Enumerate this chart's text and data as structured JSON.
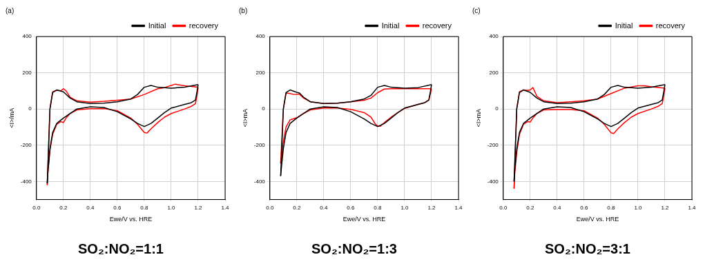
{
  "chart_data": [
    {
      "type": "line",
      "title": "(a)",
      "xlabel": "Ewe/V vs. HRE",
      "ylabel": "<I>/mA",
      "annotations": [
        "SO₂:NO₂=1:1"
      ],
      "xlim": [
        0,
        1.4
      ],
      "ylim": [
        -500,
        400
      ],
      "xticks": [
        {
          "value": 0,
          "label": "0.0"
        },
        {
          "value": 0.2,
          "label": "0.2"
        },
        {
          "value": 0.4,
          "label": "0.4"
        },
        {
          "value": 0.6,
          "label": "0.6"
        },
        {
          "value": 0.8,
          "label": "0.8"
        },
        {
          "value": 1,
          "label": "1.0"
        },
        {
          "value": 1.2,
          "label": "1.2"
        },
        {
          "value": 1.4,
          "label": "1.4"
        }
      ],
      "yticks": [
        -400,
        -200,
        0,
        200,
        400
      ],
      "grid": true,
      "legend": "top right",
      "marker": "none",
      "line_style": "solid",
      "series": [
        {
          "name": "Initial",
          "color": "#000000",
          "x": [
            0.08,
            0.1,
            0.12,
            0.15,
            0.2,
            0.25,
            0.3,
            0.4,
            0.5,
            0.6,
            0.7,
            0.75,
            0.8,
            0.85,
            0.9,
            1.0,
            1.1,
            1.2
          ],
          "values": [
            -410,
            0,
            90,
            105,
            95,
            60,
            40,
            30,
            32,
            40,
            55,
            80,
            120,
            130,
            120,
            115,
            120,
            135
          ]
        },
        {
          "color": "#000000",
          "x": [
            1.2,
            1.19,
            1.18,
            1.15,
            1.1,
            1.0,
            0.95,
            0.9,
            0.85,
            0.8,
            0.75,
            0.7,
            0.6,
            0.5,
            0.4,
            0.3,
            0.25,
            0.2,
            0.15,
            0.12,
            0.1,
            0.085,
            0.08
          ],
          "values": [
            135,
            90,
            50,
            35,
            25,
            5,
            -20,
            -50,
            -80,
            -97,
            -80,
            -55,
            -15,
            8,
            12,
            0,
            -25,
            -50,
            -80,
            -130,
            -220,
            -350,
            -410
          ]
        },
        {
          "name": "recovery",
          "color": "#ff0000",
          "x": [
            0.08,
            0.1,
            0.12,
            0.15,
            0.18,
            0.2,
            0.22,
            0.25,
            0.3,
            0.4,
            0.5,
            0.6,
            0.7,
            0.8,
            0.9,
            0.95,
            1.0,
            1.03,
            1.1,
            1.2
          ],
          "values": [
            -420,
            0,
            95,
            103,
            100,
            112,
            100,
            65,
            45,
            38,
            42,
            48,
            55,
            80,
            112,
            118,
            130,
            137,
            128,
            120
          ]
        },
        {
          "color": "#ff0000",
          "x": [
            1.2,
            1.19,
            1.18,
            1.15,
            1.1,
            1.0,
            0.95,
            0.9,
            0.85,
            0.82,
            0.8,
            0.75,
            0.7,
            0.6,
            0.5,
            0.4,
            0.3,
            0.25,
            0.22,
            0.2,
            0.18,
            0.15,
            0.12,
            0.1,
            0.085,
            0.08
          ],
          "values": [
            120,
            70,
            30,
            15,
            0,
            -25,
            -45,
            -75,
            -110,
            -133,
            -130,
            -85,
            -50,
            -10,
            2,
            2,
            -5,
            -25,
            -50,
            -75,
            -70,
            -85,
            -140,
            -230,
            -350,
            -420
          ]
        }
      ]
    },
    {
      "type": "line",
      "title": "(b)",
      "xlabel": "Ewe/V vs. HRE",
      "ylabel": "<I>mA",
      "annotations": [
        "SO₂:NO₂=1:3"
      ],
      "xlim": [
        0,
        1.4
      ],
      "ylim": [
        -500,
        400
      ],
      "xticks": [
        {
          "value": 0,
          "label": "0.0"
        },
        {
          "value": 0.2,
          "label": "0.2"
        },
        {
          "value": 0.4,
          "label": "0.4"
        },
        {
          "value": 0.6,
          "label": "0.6"
        },
        {
          "value": 0.8,
          "label": "0.8"
        },
        {
          "value": 1,
          "label": "1.0"
        },
        {
          "value": 1.2,
          "label": "1.2"
        },
        {
          "value": 1.4,
          "label": "1.4"
        }
      ],
      "yticks": [
        -400,
        -200,
        0,
        200,
        400
      ],
      "grid": true,
      "legend": "top right",
      "marker": "none",
      "line_style": "solid",
      "series": [
        {
          "name": "Initial",
          "color": "#000000",
          "x": [
            0.08,
            0.1,
            0.12,
            0.15,
            0.2,
            0.22,
            0.25,
            0.3,
            0.4,
            0.5,
            0.6,
            0.7,
            0.75,
            0.8,
            0.85,
            0.9,
            1.0,
            1.1,
            1.2
          ],
          "values": [
            -370,
            0,
            90,
            105,
            92,
            88,
            65,
            40,
            30,
            32,
            40,
            55,
            75,
            120,
            130,
            120,
            115,
            118,
            135
          ]
        },
        {
          "color": "#000000",
          "x": [
            1.2,
            1.19,
            1.18,
            1.15,
            1.1,
            1.0,
            0.95,
            0.9,
            0.85,
            0.8,
            0.75,
            0.7,
            0.6,
            0.5,
            0.4,
            0.3,
            0.25,
            0.2,
            0.15,
            0.12,
            0.1,
            0.085,
            0.08
          ],
          "values": [
            135,
            90,
            50,
            35,
            25,
            5,
            -20,
            -50,
            -80,
            -97,
            -80,
            -55,
            -15,
            8,
            12,
            0,
            -25,
            -50,
            -80,
            -130,
            -220,
            -330,
            -370
          ]
        },
        {
          "name": "recovery",
          "color": "#ff0000",
          "x": [
            0.08,
            0.1,
            0.12,
            0.15,
            0.18,
            0.22,
            0.25,
            0.3,
            0.4,
            0.5,
            0.6,
            0.7,
            0.75,
            0.8,
            0.85,
            0.9,
            1.0,
            1.2
          ],
          "values": [
            -300,
            0,
            88,
            85,
            80,
            82,
            60,
            40,
            30,
            32,
            40,
            48,
            60,
            90,
            110,
            112,
            112,
            112
          ]
        },
        {
          "color": "#ff0000",
          "x": [
            1.2,
            1.19,
            1.18,
            1.15,
            1.1,
            1.0,
            0.95,
            0.9,
            0.85,
            0.82,
            0.8,
            0.78,
            0.75,
            0.7,
            0.6,
            0.5,
            0.4,
            0.3,
            0.25,
            0.2,
            0.15,
            0.12,
            0.1,
            0.085,
            0.08
          ],
          "values": [
            112,
            80,
            50,
            35,
            25,
            3,
            -20,
            -45,
            -75,
            -95,
            -95,
            -80,
            -45,
            -20,
            -2,
            5,
            5,
            -5,
            -25,
            -48,
            -60,
            -100,
            -180,
            -280,
            -300
          ]
        }
      ]
    },
    {
      "type": "line",
      "title": "(c)",
      "xlabel": "Ewe/V vs. HRE",
      "ylabel": "<I>mA",
      "annotations": [
        "SO₂:NO₂=3:1"
      ],
      "xlim": [
        0,
        1.4
      ],
      "ylim": [
        -500,
        400
      ],
      "xticks": [
        {
          "value": 0,
          "label": "0.0"
        },
        {
          "value": 0.2,
          "label": "0.2"
        },
        {
          "value": 0.4,
          "label": "0.4"
        },
        {
          "value": 0.6,
          "label": "0.6"
        },
        {
          "value": 0.8,
          "label": "0.8"
        },
        {
          "value": 1,
          "label": "1.0"
        },
        {
          "value": 1.2,
          "label": "1.2"
        },
        {
          "value": 1.4,
          "label": "1.4"
        }
      ],
      "yticks": [
        -400,
        -200,
        0,
        200,
        400
      ],
      "grid": true,
      "legend": "top right",
      "marker": "none",
      "line_style": "solid",
      "series": [
        {
          "name": "Initial",
          "color": "#000000",
          "x": [
            0.08,
            0.1,
            0.12,
            0.15,
            0.2,
            0.25,
            0.3,
            0.4,
            0.5,
            0.6,
            0.7,
            0.75,
            0.8,
            0.85,
            0.9,
            1.0,
            1.1,
            1.2
          ],
          "values": [
            -400,
            0,
            90,
            105,
            92,
            60,
            40,
            30,
            32,
            40,
            55,
            80,
            120,
            130,
            120,
            115,
            120,
            135
          ]
        },
        {
          "color": "#000000",
          "x": [
            1.2,
            1.19,
            1.18,
            1.15,
            1.1,
            1.0,
            0.95,
            0.9,
            0.85,
            0.8,
            0.75,
            0.7,
            0.6,
            0.5,
            0.4,
            0.3,
            0.25,
            0.2,
            0.15,
            0.12,
            0.1,
            0.085,
            0.08
          ],
          "values": [
            135,
            90,
            50,
            35,
            25,
            5,
            -20,
            -50,
            -80,
            -97,
            -80,
            -55,
            -15,
            8,
            12,
            0,
            -25,
            -50,
            -80,
            -130,
            -220,
            -340,
            -400
          ]
        },
        {
          "name": "recovery",
          "color": "#ff0000",
          "x": [
            0.08,
            0.1,
            0.12,
            0.15,
            0.18,
            0.2,
            0.22,
            0.25,
            0.3,
            0.4,
            0.5,
            0.6,
            0.7,
            0.8,
            0.9,
            1.0,
            1.05,
            1.1,
            1.2
          ],
          "values": [
            -440,
            0,
            95,
            105,
            102,
            105,
            118,
            70,
            45,
            35,
            40,
            45,
            55,
            85,
            115,
            128,
            128,
            122,
            115
          ]
        },
        {
          "color": "#ff0000",
          "x": [
            1.2,
            1.19,
            1.18,
            1.15,
            1.1,
            1.0,
            0.95,
            0.9,
            0.85,
            0.82,
            0.8,
            0.75,
            0.7,
            0.6,
            0.5,
            0.4,
            0.3,
            0.25,
            0.22,
            0.2,
            0.18,
            0.15,
            0.12,
            0.1,
            0.085,
            0.08
          ],
          "values": [
            115,
            70,
            30,
            15,
            0,
            -25,
            -45,
            -75,
            -110,
            -135,
            -132,
            -85,
            -50,
            -10,
            -3,
            -3,
            -5,
            -25,
            -50,
            -72,
            -70,
            -85,
            -140,
            -240,
            -360,
            -440
          ]
        }
      ]
    }
  ]
}
